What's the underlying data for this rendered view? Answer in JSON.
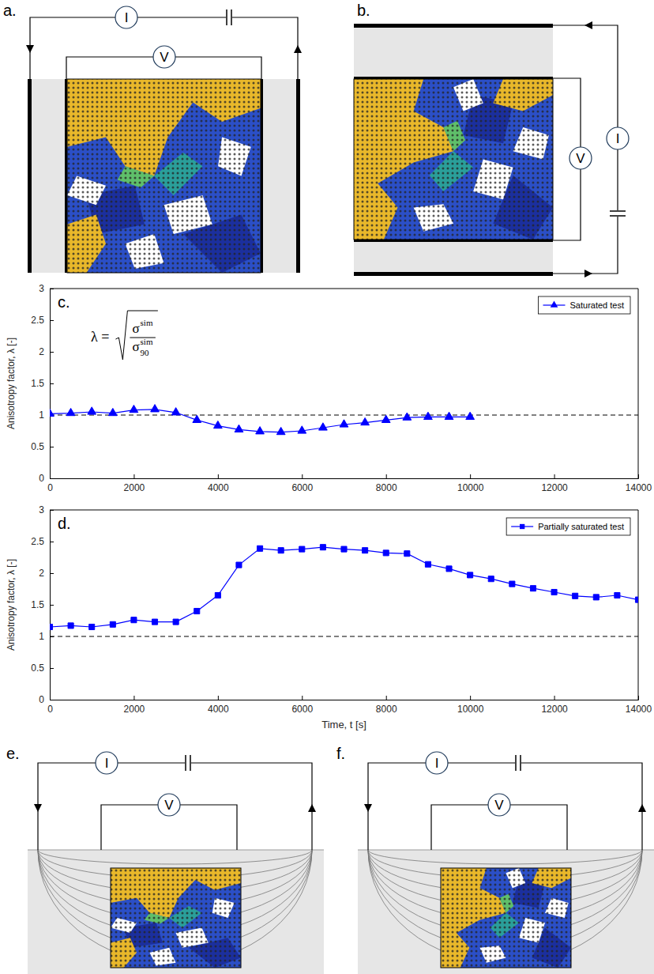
{
  "chart_data": [
    {
      "type": "line",
      "panel_label": "c.",
      "formula": {
        "lhs": "λ =",
        "numerator": "σ",
        "numerator_sup": "sim",
        "denominator": "σ",
        "denominator_sup": "sim",
        "denominator_sub": "90"
      },
      "y_label": "Anisotropy factor, λ [-]",
      "xlim": [
        0,
        14000
      ],
      "xticks": [
        0,
        2000,
        4000,
        6000,
        8000,
        10000,
        12000,
        14000
      ],
      "ylim": [
        0,
        3
      ],
      "yticks": [
        0,
        0.5,
        1,
        1.5,
        2,
        2.5,
        3
      ],
      "hline": 1,
      "legend": "top-right",
      "x": [
        0,
        500,
        1000,
        1500,
        2000,
        2500,
        3000,
        3500,
        4000,
        4500,
        5000,
        5500,
        6000,
        6500,
        7000,
        7500,
        8000,
        8500,
        9000,
        9500,
        10000
      ],
      "series": [
        {
          "name": "Saturated test",
          "color": "#0000ff",
          "marker": "triangle",
          "line_style": "solid",
          "values": [
            1.02,
            1.03,
            1.05,
            1.03,
            1.08,
            1.09,
            1.04,
            0.92,
            0.83,
            0.77,
            0.74,
            0.73,
            0.75,
            0.8,
            0.85,
            0.88,
            0.92,
            0.96,
            0.97,
            0.97,
            0.97
          ]
        }
      ]
    },
    {
      "type": "line",
      "panel_label": "d.",
      "y_label": "Anisotropy factor, λ [-]",
      "x_label": "Time, t [s]",
      "xlim": [
        0,
        14000
      ],
      "xticks": [
        0,
        2000,
        4000,
        6000,
        8000,
        10000,
        12000,
        14000
      ],
      "ylim": [
        0,
        3
      ],
      "yticks": [
        0,
        0.5,
        1,
        1.5,
        2,
        2.5,
        3
      ],
      "hline": 1,
      "legend": "top-right",
      "x": [
        0,
        500,
        1000,
        1500,
        2000,
        2500,
        3000,
        3500,
        4000,
        4500,
        5000,
        5500,
        6000,
        6500,
        7000,
        7500,
        8000,
        8500,
        9000,
        9500,
        10000,
        10500,
        11000,
        11500,
        12000,
        12500,
        13000,
        13500,
        14000
      ],
      "series": [
        {
          "name": "Partially saturated test",
          "color": "#0000ff",
          "marker": "square",
          "line_style": "solid",
          "values": [
            1.15,
            1.17,
            1.15,
            1.19,
            1.26,
            1.23,
            1.23,
            1.4,
            1.65,
            2.13,
            2.39,
            2.36,
            2.38,
            2.41,
            2.38,
            2.36,
            2.32,
            2.31,
            2.14,
            2.07,
            1.97,
            1.91,
            1.83,
            1.76,
            1.7,
            1.64,
            1.62,
            1.65,
            1.58
          ]
        }
      ]
    }
  ],
  "diagrams": [
    {
      "label": "a.",
      "current": "I",
      "voltage": "V"
    },
    {
      "label": "b.",
      "current": "I",
      "voltage": "V"
    },
    {
      "label": "e.",
      "current": "I",
      "voltage": "V"
    },
    {
      "label": "f.",
      "current": "I",
      "voltage": "V"
    }
  ]
}
